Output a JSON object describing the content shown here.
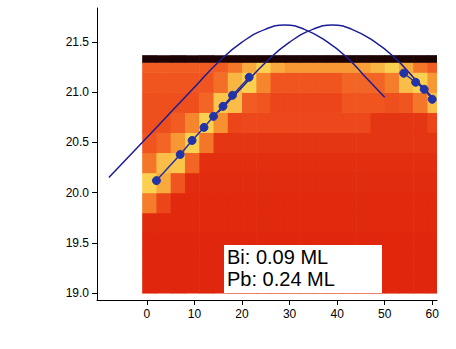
{
  "chart_data": {
    "type": "line",
    "xlim": [
      -10.5,
      61
    ],
    "xticks": [
      0,
      10,
      20,
      30,
      40,
      50,
      60
    ],
    "ylim": [
      18.93,
      21.84
    ],
    "yticks": [
      {
        "value": 19,
        "label": "19.0"
      },
      19.5,
      {
        "value": 20,
        "label": "20.0"
      },
      20.5,
      {
        "value": 21,
        "label": "21.0"
      },
      21.5
    ],
    "heatmap": {
      "x_edges": [
        -1,
        2,
        5,
        8,
        11,
        14,
        17,
        20,
        23,
        26,
        29,
        32,
        35,
        38,
        41,
        44,
        47,
        50,
        53,
        56,
        59,
        62
      ],
      "y_edges": [
        19.0,
        19.2,
        19.4,
        19.6,
        19.8,
        20.0,
        20.2,
        20.4,
        20.6,
        20.8,
        21.0,
        21.2,
        21.3,
        21.37
      ],
      "range": [
        0,
        1
      ],
      "cells": [
        [
          0.45,
          0.45,
          0.45,
          0.45,
          0.45,
          0.45,
          0.45,
          0.45,
          0.45,
          0.45,
          0.45,
          0.45,
          0.45,
          0.45,
          0.45,
          0.45,
          0.45,
          0.45,
          0.45,
          0.45,
          0.45
        ],
        [
          0.45,
          0.45,
          0.45,
          0.45,
          0.45,
          0.45,
          0.45,
          0.45,
          0.45,
          0.45,
          0.45,
          0.45,
          0.45,
          0.45,
          0.45,
          0.45,
          0.45,
          0.45,
          0.45,
          0.45,
          0.45
        ],
        [
          0.45,
          0.45,
          0.45,
          0.45,
          0.45,
          0.45,
          0.45,
          0.45,
          0.45,
          0.45,
          0.45,
          0.45,
          0.45,
          0.45,
          0.45,
          0.45,
          0.45,
          0.45,
          0.45,
          0.45,
          0.45
        ],
        [
          0.46,
          0.46,
          0.46,
          0.46,
          0.46,
          0.46,
          0.46,
          0.46,
          0.46,
          0.46,
          0.46,
          0.46,
          0.46,
          0.46,
          0.46,
          0.46,
          0.46,
          0.46,
          0.46,
          0.46,
          0.46
        ],
        [
          0.72,
          0.55,
          0.46,
          0.46,
          0.46,
          0.46,
          0.46,
          0.46,
          0.46,
          0.46,
          0.46,
          0.46,
          0.46,
          0.46,
          0.46,
          0.46,
          0.46,
          0.46,
          0.46,
          0.46,
          0.46
        ],
        [
          0.95,
          0.85,
          0.6,
          0.47,
          0.47,
          0.47,
          0.47,
          0.47,
          0.47,
          0.47,
          0.47,
          0.47,
          0.47,
          0.47,
          0.47,
          0.47,
          0.47,
          0.47,
          0.47,
          0.47,
          0.47
        ],
        [
          0.7,
          0.9,
          0.92,
          0.65,
          0.48,
          0.48,
          0.48,
          0.48,
          0.48,
          0.48,
          0.48,
          0.48,
          0.48,
          0.48,
          0.48,
          0.48,
          0.48,
          0.48,
          0.48,
          0.48,
          0.48
        ],
        [
          0.6,
          0.65,
          0.8,
          0.95,
          0.7,
          0.5,
          0.5,
          0.5,
          0.5,
          0.5,
          0.5,
          0.5,
          0.5,
          0.5,
          0.5,
          0.5,
          0.5,
          0.5,
          0.5,
          0.5,
          0.5
        ],
        [
          0.58,
          0.58,
          0.62,
          0.75,
          0.95,
          0.78,
          0.55,
          0.56,
          0.56,
          0.56,
          0.56,
          0.56,
          0.56,
          0.56,
          0.56,
          0.56,
          0.5,
          0.5,
          0.5,
          0.5,
          0.55
        ],
        [
          0.58,
          0.58,
          0.58,
          0.58,
          0.65,
          0.92,
          0.9,
          0.62,
          0.6,
          0.55,
          0.55,
          0.55,
          0.55,
          0.55,
          0.6,
          0.6,
          0.6,
          0.58,
          0.6,
          0.7,
          0.9
        ],
        [
          0.6,
          0.6,
          0.6,
          0.6,
          0.6,
          0.68,
          0.88,
          0.95,
          0.75,
          0.6,
          0.6,
          0.6,
          0.6,
          0.6,
          0.65,
          0.65,
          0.65,
          0.72,
          0.9,
          0.95,
          0.8
        ],
        [
          0.62,
          0.62,
          0.62,
          0.62,
          0.62,
          0.62,
          0.7,
          0.85,
          0.95,
          0.85,
          0.8,
          0.8,
          0.8,
          0.8,
          0.8,
          0.82,
          0.88,
          0.95,
          0.85,
          0.7,
          0.62
        ],
        [
          0.05,
          0.05,
          0.05,
          0.05,
          0.05,
          0.05,
          0.05,
          0.05,
          0.05,
          0.05,
          0.05,
          0.05,
          0.05,
          0.05,
          0.05,
          0.05,
          0.05,
          0.05,
          0.05,
          0.05,
          0.05
        ]
      ]
    },
    "series": [
      {
        "type": "line",
        "marker": "none",
        "color": "#1c1c96",
        "x": [
          -8,
          -4,
          0,
          5,
          10,
          15,
          20,
          25,
          29,
          33,
          38,
          42,
          46,
          50
        ],
        "values": [
          20.15,
          20.35,
          20.55,
          20.8,
          21.05,
          21.3,
          21.5,
          21.63,
          21.67,
          21.63,
          21.5,
          21.35,
          21.15,
          20.95
        ]
      },
      {
        "type": "line",
        "marker": "none",
        "color": "#1c1c96",
        "x": [
          15,
          20,
          25,
          30,
          35,
          39,
          43,
          48,
          52,
          56,
          60
        ],
        "values": [
          20.8,
          21.05,
          21.3,
          21.5,
          21.63,
          21.67,
          21.63,
          21.5,
          21.35,
          21.15,
          20.95
        ]
      },
      {
        "type": "line",
        "marker": "circle",
        "color": "#2233a8",
        "x": [
          2,
          7,
          9.5,
          12,
          14,
          16,
          18,
          21.5
        ],
        "values": [
          20.12,
          20.38,
          20.52,
          20.65,
          20.76,
          20.86,
          20.97,
          21.15
        ]
      },
      {
        "type": "line",
        "marker": "circle",
        "color": "#2233a8",
        "x": [
          54,
          56.5,
          58.3,
          60
        ],
        "values": [
          21.19,
          21.1,
          21.03,
          20.93
        ]
      }
    ],
    "annotations": [
      "Bi: 0.09 ML",
      "Pb: 0.24 ML"
    ]
  }
}
